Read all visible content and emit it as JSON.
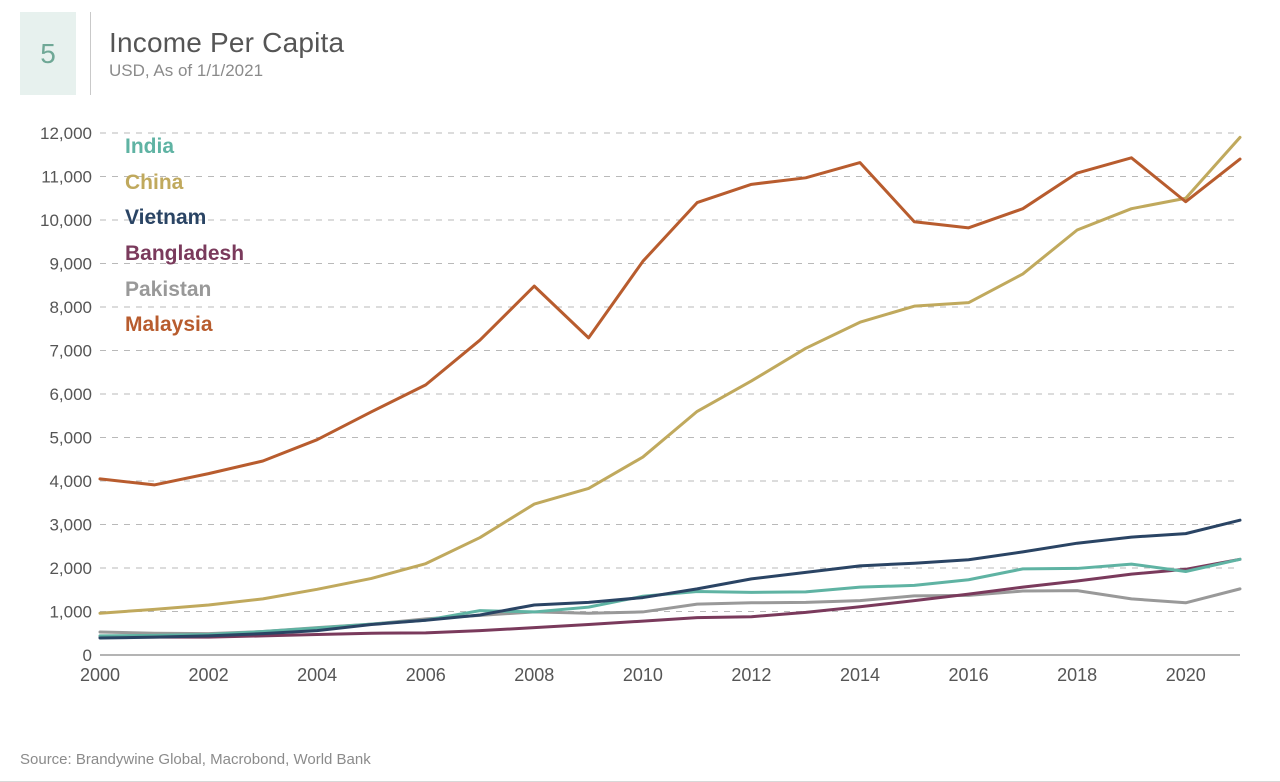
{
  "chart_number": "5",
  "title": "Income Per Capita",
  "subtitle": "USD, As of 1/1/2021",
  "source": "Source: Brandywine Global, Macrobond, World Bank",
  "chart": {
    "type": "line",
    "background_color": "#ffffff",
    "grid_color": "#b9b9b9",
    "axis_color": "#888888",
    "text_color": "#555555",
    "chart_number_bg": "#e7f1ee",
    "chart_number_color": "#6fa896",
    "line_width": 3,
    "x": {
      "min": 2000,
      "max": 2021,
      "ticks": [
        2000,
        2002,
        2004,
        2006,
        2008,
        2010,
        2012,
        2014,
        2016,
        2018,
        2020
      ]
    },
    "y": {
      "min": 0,
      "max": 12000,
      "ticks": [
        0,
        1000,
        2000,
        3000,
        4000,
        5000,
        6000,
        7000,
        8000,
        9000,
        10000,
        11000,
        12000
      ],
      "tick_labels": [
        "0",
        "1,000",
        "2,000",
        "3,000",
        "4,000",
        "5,000",
        "6,000",
        "7,000",
        "8,000",
        "9,000",
        "10,000",
        "11,000",
        "12,000"
      ]
    },
    "legend_order": [
      "India",
      "China",
      "Vietnam",
      "Bangladesh",
      "Pakistan",
      "Malaysia"
    ],
    "series": {
      "India": {
        "color": "#5fb3a3",
        "points": [
          [
            2000,
            440
          ],
          [
            2001,
            450
          ],
          [
            2002,
            470
          ],
          [
            2003,
            540
          ],
          [
            2004,
            620
          ],
          [
            2005,
            710
          ],
          [
            2006,
            800
          ],
          [
            2007,
            1020
          ],
          [
            2008,
            990
          ],
          [
            2009,
            1100
          ],
          [
            2010,
            1350
          ],
          [
            2011,
            1460
          ],
          [
            2012,
            1440
          ],
          [
            2013,
            1450
          ],
          [
            2014,
            1560
          ],
          [
            2015,
            1600
          ],
          [
            2016,
            1730
          ],
          [
            2017,
            1980
          ],
          [
            2018,
            1990
          ],
          [
            2019,
            2090
          ],
          [
            2020,
            1920
          ],
          [
            2021,
            2200
          ]
        ]
      },
      "China": {
        "color": "#c0a95d",
        "points": [
          [
            2000,
            960
          ],
          [
            2001,
            1050
          ],
          [
            2002,
            1150
          ],
          [
            2003,
            1290
          ],
          [
            2004,
            1510
          ],
          [
            2005,
            1760
          ],
          [
            2006,
            2100
          ],
          [
            2007,
            2700
          ],
          [
            2008,
            3470
          ],
          [
            2009,
            3830
          ],
          [
            2010,
            4550
          ],
          [
            2011,
            5600
          ],
          [
            2012,
            6300
          ],
          [
            2013,
            7050
          ],
          [
            2014,
            7650
          ],
          [
            2015,
            8020
          ],
          [
            2016,
            8100
          ],
          [
            2017,
            8760
          ],
          [
            2018,
            9770
          ],
          [
            2019,
            10260
          ],
          [
            2020,
            10500
          ],
          [
            2021,
            11900
          ]
        ]
      },
      "Vietnam": {
        "color": "#2a4464",
        "points": [
          [
            2000,
            390
          ],
          [
            2001,
            410
          ],
          [
            2002,
            440
          ],
          [
            2003,
            490
          ],
          [
            2004,
            560
          ],
          [
            2005,
            700
          ],
          [
            2006,
            800
          ],
          [
            2007,
            920
          ],
          [
            2008,
            1150
          ],
          [
            2009,
            1210
          ],
          [
            2010,
            1320
          ],
          [
            2011,
            1520
          ],
          [
            2012,
            1750
          ],
          [
            2013,
            1900
          ],
          [
            2014,
            2050
          ],
          [
            2015,
            2110
          ],
          [
            2016,
            2190
          ],
          [
            2017,
            2370
          ],
          [
            2018,
            2570
          ],
          [
            2019,
            2710
          ],
          [
            2020,
            2790
          ],
          [
            2021,
            3100
          ]
        ]
      },
      "Bangladesh": {
        "color": "#7a3a5c",
        "points": [
          [
            2000,
            410
          ],
          [
            2001,
            410
          ],
          [
            2002,
            410
          ],
          [
            2003,
            440
          ],
          [
            2004,
            470
          ],
          [
            2005,
            500
          ],
          [
            2006,
            510
          ],
          [
            2007,
            560
          ],
          [
            2008,
            630
          ],
          [
            2009,
            700
          ],
          [
            2010,
            780
          ],
          [
            2011,
            860
          ],
          [
            2012,
            880
          ],
          [
            2013,
            980
          ],
          [
            2014,
            1110
          ],
          [
            2015,
            1250
          ],
          [
            2016,
            1400
          ],
          [
            2017,
            1560
          ],
          [
            2018,
            1700
          ],
          [
            2019,
            1860
          ],
          [
            2020,
            1970
          ],
          [
            2021,
            2200
          ]
        ]
      },
      "Pakistan": {
        "color": "#999999",
        "points": [
          [
            2000,
            530
          ],
          [
            2001,
            500
          ],
          [
            2002,
            490
          ],
          [
            2003,
            540
          ],
          [
            2004,
            630
          ],
          [
            2005,
            710
          ],
          [
            2006,
            830
          ],
          [
            2007,
            910
          ],
          [
            2008,
            990
          ],
          [
            2009,
            960
          ],
          [
            2010,
            990
          ],
          [
            2011,
            1170
          ],
          [
            2012,
            1200
          ],
          [
            2013,
            1210
          ],
          [
            2014,
            1250
          ],
          [
            2015,
            1360
          ],
          [
            2016,
            1370
          ],
          [
            2017,
            1470
          ],
          [
            2018,
            1480
          ],
          [
            2019,
            1290
          ],
          [
            2020,
            1200
          ],
          [
            2021,
            1520
          ]
        ]
      },
      "Malaysia": {
        "color": "#b85c2e",
        "points": [
          [
            2000,
            4050
          ],
          [
            2001,
            3910
          ],
          [
            2002,
            4170
          ],
          [
            2003,
            4460
          ],
          [
            2004,
            4950
          ],
          [
            2005,
            5590
          ],
          [
            2006,
            6210
          ],
          [
            2007,
            7240
          ],
          [
            2008,
            8480
          ],
          [
            2009,
            7290
          ],
          [
            2010,
            9050
          ],
          [
            2011,
            10400
          ],
          [
            2012,
            10820
          ],
          [
            2013,
            10970
          ],
          [
            2014,
            11320
          ],
          [
            2015,
            9960
          ],
          [
            2016,
            9820
          ],
          [
            2017,
            10260
          ],
          [
            2018,
            11080
          ],
          [
            2019,
            11430
          ],
          [
            2020,
            10420
          ],
          [
            2021,
            11400
          ]
        ]
      }
    }
  }
}
